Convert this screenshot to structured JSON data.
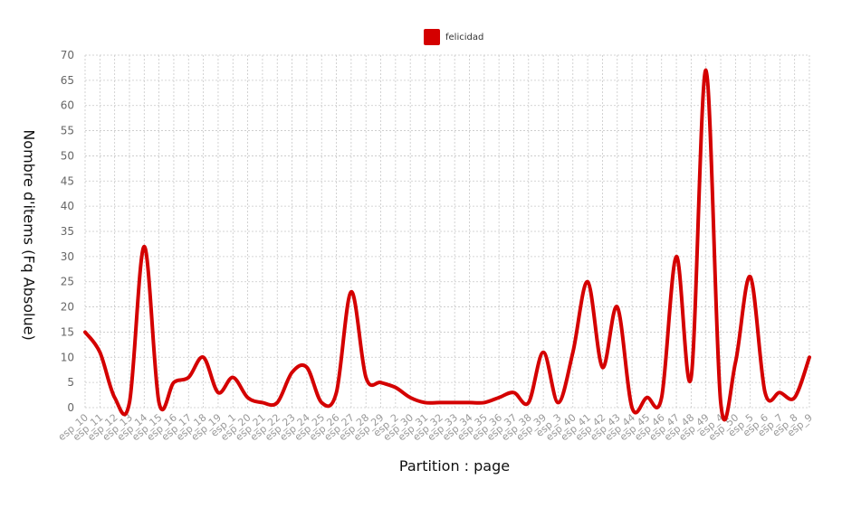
{
  "chart_data": {
    "type": "line",
    "title": "",
    "xlabel": "Partition : page",
    "ylabel": "Nombre d'items (Fq Absolue)",
    "ylim": [
      0,
      70
    ],
    "yticks": [
      0,
      5,
      10,
      15,
      20,
      25,
      30,
      35,
      40,
      45,
      50,
      55,
      60,
      65,
      70
    ],
    "grid": true,
    "legend_position": "top-center",
    "categories": [
      "esp_10",
      "esp_11",
      "esp_12",
      "esp_13",
      "esp_14",
      "esp_15",
      "esp_16",
      "esp_17",
      "esp_18",
      "esp_19",
      "esp_1",
      "esp_20",
      "esp_21",
      "esp_22",
      "esp_23",
      "esp_24",
      "esp_25",
      "esp_26",
      "esp_27",
      "esp_28",
      "esp_29",
      "esp_2",
      "esp_30",
      "esp_31",
      "esp_32",
      "esp_33",
      "esp_34",
      "esp_35",
      "esp_36",
      "esp_37",
      "esp_38",
      "esp_39",
      "esp_3",
      "esp_40",
      "esp_41",
      "esp_42",
      "esp_43",
      "esp_44",
      "esp_45",
      "esp_46",
      "esp_47",
      "esp_48",
      "esp_49",
      "esp_4",
      "esp_50",
      "esp_5",
      "esp_6",
      "esp_7",
      "esp_8",
      "esp_9"
    ],
    "series": [
      {
        "name": "felicidad",
        "color": "#d40000",
        "values": [
          15,
          11,
          2,
          1,
          32,
          1,
          5,
          6,
          10,
          3,
          6,
          2,
          1,
          1,
          7,
          8,
          1,
          3,
          23,
          6,
          5,
          4,
          2,
          1,
          1,
          1,
          1,
          1,
          2,
          3,
          1,
          11,
          1,
          11,
          25,
          8,
          20,
          0,
          2,
          2,
          30,
          6,
          67,
          1,
          9,
          26,
          3,
          3,
          2,
          10
        ]
      }
    ]
  }
}
